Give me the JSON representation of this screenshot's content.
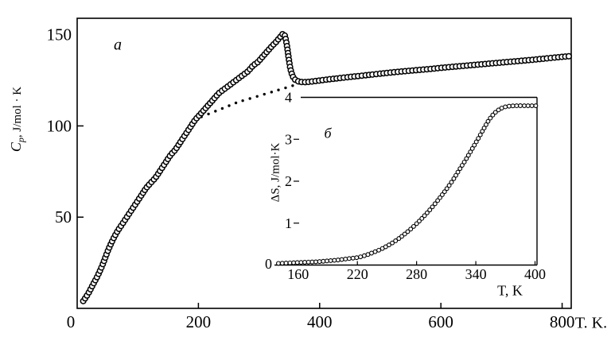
{
  "colors": {
    "ink": "#000000",
    "background": "#ffffff"
  },
  "chart_data": [
    {
      "id": "main-panel",
      "type": "scatter",
      "panel_label": "a",
      "xlabel": "T. K.",
      "ylabel": "Cp, J/mol · K",
      "ylabel_parts": {
        "symbol": "C",
        "sub": "p",
        "units": ", J/mol · K"
      },
      "xlim": [
        0,
        815
      ],
      "ylim": [
        0,
        159
      ],
      "xticks": [
        0,
        200,
        400,
        600,
        800
      ],
      "yticks": [
        50,
        100,
        150
      ],
      "grid": false,
      "legend": false,
      "series": [
        {
          "name": "heat-capacity",
          "marker": "open-circle",
          "points": [
            [
              10,
              4
            ],
            [
              18,
              8
            ],
            [
              26,
              13
            ],
            [
              34,
              18
            ],
            [
              42,
              24
            ],
            [
              50,
              31
            ],
            [
              58,
              37
            ],
            [
              66,
              42
            ],
            [
              74,
              46
            ],
            [
              82,
              50
            ],
            [
              90,
              54
            ],
            [
              98,
              58
            ],
            [
              106,
              62
            ],
            [
              114,
              66
            ],
            [
              122,
              69
            ],
            [
              130,
              72
            ],
            [
              138,
              76
            ],
            [
              146,
              80
            ],
            [
              154,
              84
            ],
            [
              162,
              87
            ],
            [
              170,
              91
            ],
            [
              178,
              95
            ],
            [
              186,
              99
            ],
            [
              194,
              103
            ],
            [
              202,
              106
            ],
            [
              210,
              109
            ],
            [
              218,
              112
            ],
            [
              226,
              115
            ],
            [
              234,
              118
            ],
            [
              242,
              120
            ],
            [
              250,
              122
            ],
            [
              258,
              124
            ],
            [
              266,
              126
            ],
            [
              274,
              128
            ],
            [
              282,
              130
            ],
            [
              290,
              133
            ],
            [
              298,
              135
            ],
            [
              306,
              138
            ],
            [
              314,
              141
            ],
            [
              322,
              144
            ],
            [
              328,
              146
            ],
            [
              333,
              148
            ],
            [
              337,
              149.5
            ],
            [
              340,
              150.5
            ],
            [
              343,
              149
            ],
            [
              346,
              144
            ],
            [
              349,
              137
            ],
            [
              352,
              131
            ],
            [
              356,
              127
            ],
            [
              361,
              125
            ],
            [
              368,
              124.2
            ],
            [
              376,
              124
            ],
            [
              386,
              124.3
            ],
            [
              398,
              124.8
            ],
            [
              412,
              125.4
            ],
            [
              428,
              126
            ],
            [
              446,
              126.7
            ],
            [
              466,
              127.4
            ],
            [
              488,
              128.2
            ],
            [
              510,
              129
            ],
            [
              534,
              129.8
            ],
            [
              558,
              130.5
            ],
            [
              582,
              131.2
            ],
            [
              606,
              132
            ],
            [
              630,
              132.7
            ],
            [
              654,
              133.4
            ],
            [
              678,
              134.1
            ],
            [
              702,
              134.8
            ],
            [
              726,
              135.5
            ],
            [
              750,
              136.2
            ],
            [
              774,
              137
            ],
            [
              798,
              137.8
            ],
            [
              812,
              138.2
            ]
          ]
        },
        {
          "name": "lattice-baseline",
          "marker": "dotted-line",
          "points": [
            [
              205,
              105
            ],
            [
              220,
              107
            ],
            [
              235,
              109
            ],
            [
              250,
              111
            ],
            [
              265,
              113
            ],
            [
              280,
              114.5
            ],
            [
              295,
              116
            ],
            [
              310,
              117.5
            ],
            [
              325,
              119
            ],
            [
              340,
              120.5
            ],
            [
              352,
              121.7
            ],
            [
              362,
              122.8
            ],
            [
              372,
              124
            ]
          ]
        }
      ]
    },
    {
      "id": "inset-panel",
      "type": "scatter",
      "panel_label": "б",
      "xlabel": "T, K",
      "ylabel": "ΔS, J/mol·K",
      "xlim": [
        136,
        402
      ],
      "ylim": [
        0,
        4
      ],
      "xticks": [
        160,
        220,
        280,
        340,
        400
      ],
      "yticks": [
        0,
        1,
        2,
        3,
        4
      ],
      "grid": false,
      "legend": false,
      "series": [
        {
          "name": "transition-entropy",
          "marker": "open-circle",
          "points": [
            [
              140,
              0.04
            ],
            [
              150,
              0.05
            ],
            [
              160,
              0.06
            ],
            [
              170,
              0.07
            ],
            [
              180,
              0.08
            ],
            [
              190,
              0.1
            ],
            [
              200,
              0.12
            ],
            [
              210,
              0.15
            ],
            [
              220,
              0.18
            ],
            [
              228,
              0.23
            ],
            [
              236,
              0.3
            ],
            [
              244,
              0.38
            ],
            [
              252,
              0.48
            ],
            [
              260,
              0.6
            ],
            [
              268,
              0.74
            ],
            [
              276,
              0.9
            ],
            [
              284,
              1.08
            ],
            [
              292,
              1.28
            ],
            [
              300,
              1.5
            ],
            [
              308,
              1.74
            ],
            [
              316,
              2.0
            ],
            [
              324,
              2.3
            ],
            [
              330,
              2.52
            ],
            [
              336,
              2.76
            ],
            [
              342,
              3.0
            ],
            [
              348,
              3.25
            ],
            [
              353,
              3.45
            ],
            [
              358,
              3.6
            ],
            [
              363,
              3.7
            ],
            [
              368,
              3.76
            ],
            [
              374,
              3.79
            ],
            [
              382,
              3.8
            ],
            [
              390,
              3.8
            ],
            [
              396,
              3.8
            ],
            [
              402,
              3.8
            ]
          ]
        }
      ]
    }
  ]
}
